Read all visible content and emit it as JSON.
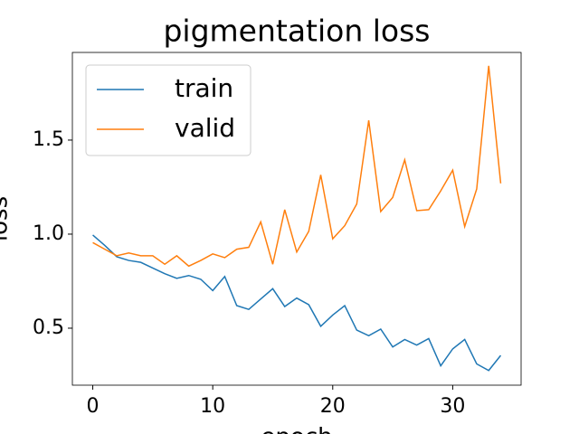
{
  "chart_data": {
    "type": "line",
    "title": "pigmentation loss",
    "x_label": "epoch",
    "y_label": "loss",
    "x": [
      0,
      1,
      2,
      3,
      4,
      5,
      6,
      7,
      8,
      9,
      10,
      11,
      12,
      13,
      14,
      15,
      16,
      17,
      18,
      19,
      20,
      21,
      22,
      23,
      24,
      25,
      26,
      27,
      28,
      29,
      30,
      31,
      32,
      33,
      34
    ],
    "series": [
      {
        "name": "train",
        "color": "#1f77b4",
        "values": [
          0.995,
          0.94,
          0.88,
          0.86,
          0.85,
          0.82,
          0.79,
          0.765,
          0.78,
          0.76,
          0.7,
          0.775,
          0.62,
          0.6,
          0.655,
          0.71,
          0.615,
          0.66,
          0.625,
          0.51,
          0.57,
          0.62,
          0.49,
          0.46,
          0.495,
          0.4,
          0.44,
          0.41,
          0.445,
          0.3,
          0.39,
          0.44,
          0.31,
          0.275,
          0.355
        ]
      },
      {
        "name": "valid",
        "color": "#ff7f0e",
        "values": [
          0.955,
          0.92,
          0.885,
          0.9,
          0.885,
          0.885,
          0.84,
          0.885,
          0.83,
          0.86,
          0.895,
          0.875,
          0.92,
          0.93,
          1.065,
          0.84,
          1.13,
          0.905,
          1.015,
          1.315,
          0.975,
          1.045,
          1.16,
          1.605,
          1.12,
          1.195,
          1.395,
          1.125,
          1.13,
          1.23,
          1.34,
          1.04,
          1.24,
          1.895,
          1.27
        ]
      }
    ],
    "xlim": [
      -1.7,
      35.7
    ],
    "ylim": [
      0.197,
      1.966
    ],
    "xticks": [
      0,
      10,
      20,
      30
    ],
    "yticks": [
      0.5,
      {
        "value": 1,
        "label": "1.0"
      },
      1.5
    ],
    "legend": "upper left"
  }
}
